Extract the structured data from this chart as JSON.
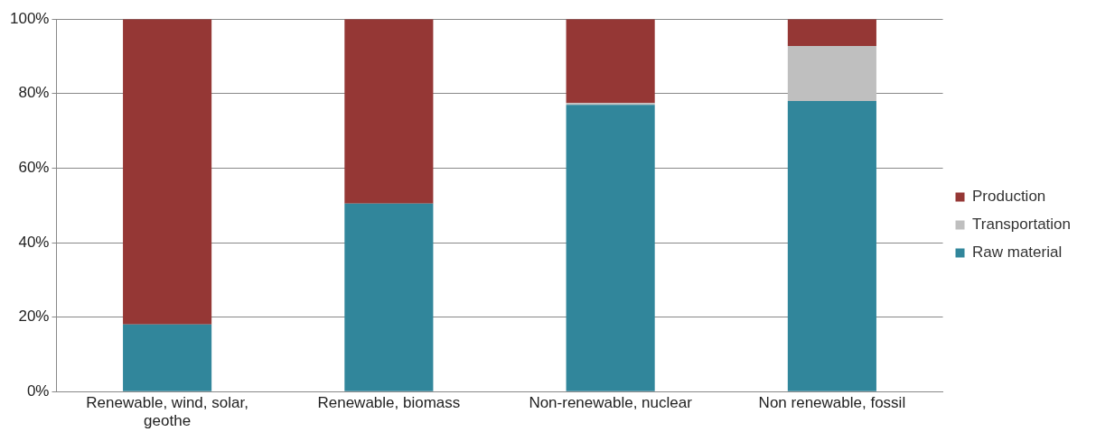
{
  "chart_data": {
    "type": "bar",
    "stacked": true,
    "categories": [
      "Renewable, wind, solar, geothe",
      "Renewable, biomass",
      "Non-renewable, nuclear",
      "Non renewable, fossil"
    ],
    "series": [
      {
        "name": "Raw material",
        "color": "#31869b",
        "values": [
          18,
          50.5,
          77,
          78
        ]
      },
      {
        "name": "Transportation",
        "color": "#bfbfbf",
        "values": [
          0,
          0,
          0.5,
          14.8
        ]
      },
      {
        "name": "Production",
        "color": "#953735",
        "values": [
          82,
          49.5,
          22.5,
          7.2
        ]
      }
    ],
    "ylim": [
      0,
      100
    ],
    "yticks": [
      {
        "value": 0,
        "label": "0%"
      },
      {
        "value": 20,
        "label": "20%"
      },
      {
        "value": 40,
        "label": "40%"
      },
      {
        "value": 60,
        "label": "60%"
      },
      {
        "value": 80,
        "label": "80%"
      },
      {
        "value": 100,
        "label": "100%"
      }
    ],
    "grid": "y",
    "legend": "right"
  }
}
